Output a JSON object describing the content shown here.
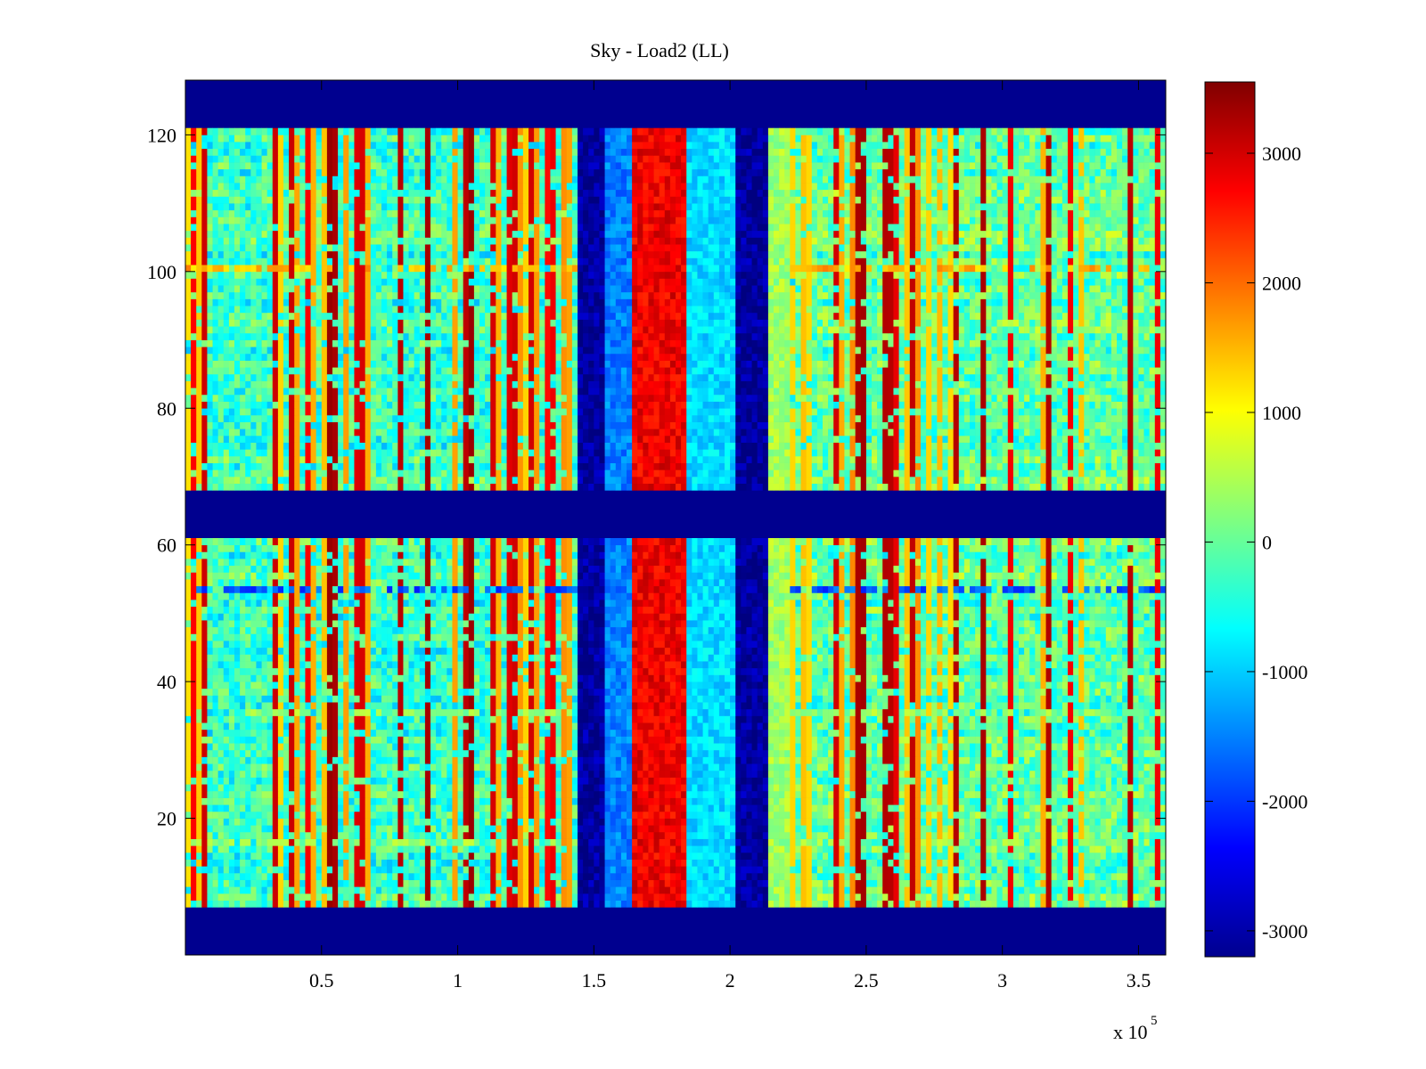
{
  "chart_data": {
    "type": "heatmap",
    "title": "Sky - Load2 (LL)",
    "xlabel": "",
    "ylabel": "",
    "x_multiplier_label": "x 10",
    "x_multiplier_exponent": "5",
    "xlim": [
      0,
      360000
    ],
    "ylim": [
      0,
      128
    ],
    "x_ticks": [
      {
        "value": 50000,
        "label": "0.5"
      },
      {
        "value": 100000,
        "label": "1"
      },
      {
        "value": 150000,
        "label": "1.5"
      },
      {
        "value": 200000,
        "label": "2"
      },
      {
        "value": 250000,
        "label": "2.5"
      },
      {
        "value": 300000,
        "label": "3"
      },
      {
        "value": 350000,
        "label": "3.5"
      }
    ],
    "y_ticks": [
      {
        "value": 20,
        "label": "20"
      },
      {
        "value": 40,
        "label": "40"
      },
      {
        "value": 60,
        "label": "60"
      },
      {
        "value": 80,
        "label": "80"
      },
      {
        "value": 100,
        "label": "100"
      },
      {
        "value": 120,
        "label": "120"
      }
    ],
    "colorbar": {
      "colormap": "jet",
      "clim": [
        -3200,
        3550
      ],
      "ticks": [
        {
          "value": 3000,
          "label": "3000"
        },
        {
          "value": 2000,
          "label": "2000"
        },
        {
          "value": 1000,
          "label": "1000"
        },
        {
          "value": 0,
          "label": "0"
        },
        {
          "value": -1000,
          "label": "-1000"
        },
        {
          "value": -2000,
          "label": "-2000"
        },
        {
          "value": -3000,
          "label": "-3000"
        }
      ]
    },
    "background_level": -300,
    "masked_value": -3200,
    "masked_channel_bands": [
      [
        0,
        7
      ],
      [
        61,
        68
      ],
      [
        121,
        128
      ]
    ],
    "time_regions": [
      {
        "x": [
          143000,
          154000
        ],
        "value": -3000
      },
      {
        "x": [
          154000,
          163000
        ],
        "value": -1500
      },
      {
        "x": [
          163000,
          184000
        ],
        "value": 2800
      },
      {
        "x": [
          184000,
          201000
        ],
        "value": -900
      },
      {
        "x": [
          201000,
          213000
        ],
        "value": -3000
      },
      {
        "x": [
          213000,
          222000
        ],
        "value": 400
      }
    ],
    "channel_features": [
      {
        "y": 100,
        "value": 1500
      },
      {
        "y": 53,
        "value": -1800
      },
      {
        "y": 35,
        "value": 300
      },
      {
        "y": 16,
        "value": 300
      }
    ],
    "grid": false
  }
}
